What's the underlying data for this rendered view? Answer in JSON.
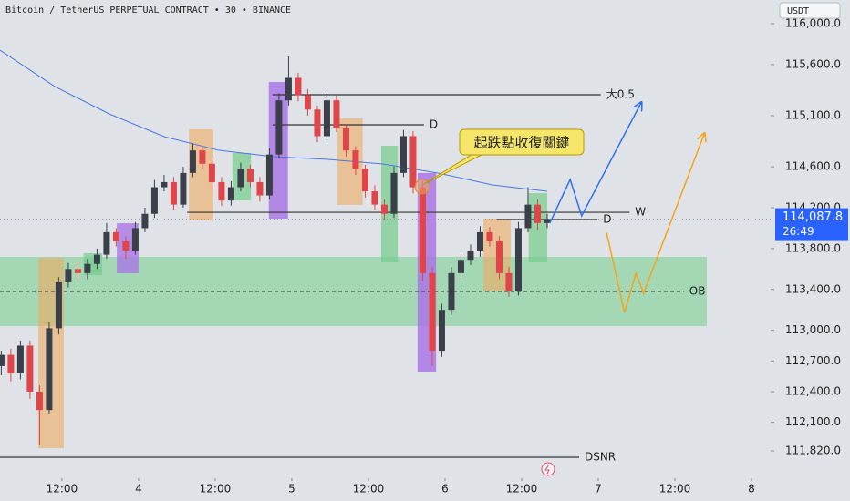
{
  "chart_data": {
    "type": "candlestick",
    "title": "Bitcoin / TetherUS PERPETUAL CONTRACT • 30 • BINANCE",
    "currency": "USDT",
    "annotation": "起跌點收復關鍵",
    "up_color": "#3b3f4a",
    "down_color": "#e0454a",
    "xlim": [
      2.3,
      123
    ],
    "ylim": [
      111553,
      116232
    ],
    "xticks": [
      {
        "value": 12,
        "label": "12:00"
      },
      {
        "value": 24,
        "label": "4"
      },
      {
        "value": 36,
        "label": "12:00"
      },
      {
        "value": 48,
        "label": "5"
      },
      {
        "value": 60,
        "label": "12:00"
      },
      {
        "value": 72,
        "label": "6"
      },
      {
        "value": 84,
        "label": "12:00"
      },
      {
        "value": 96,
        "label": "7"
      },
      {
        "value": 108,
        "label": "12:00"
      },
      {
        "value": 120,
        "label": "8"
      }
    ],
    "yticks": [
      {
        "value": 116000,
        "label": "116,000.0"
      },
      {
        "value": 115600,
        "label": "115,600.0"
      },
      {
        "value": 115100,
        "label": "115,100.0"
      },
      {
        "value": 114600,
        "label": "114,600.0"
      },
      {
        "value": 114200,
        "label": "114,200.0"
      },
      {
        "value": 113800,
        "label": "113,800.0"
      },
      {
        "value": 113400,
        "label": "113,400.0"
      },
      {
        "value": 113000,
        "label": "113,000.0"
      },
      {
        "value": 112700,
        "label": "112,700.0"
      },
      {
        "value": 112400,
        "label": "112,400.0"
      },
      {
        "value": 112100,
        "label": "112,100.0"
      },
      {
        "value": 111820,
        "label": "111,820.0"
      }
    ],
    "price_tag": {
      "value": 114087.8,
      "label": "114,087.8",
      "countdown": "26:49",
      "color": "#2962ff"
    },
    "candles": [
      [
        2.5,
        112650,
        112800,
        112560,
        112760
      ],
      [
        4,
        112760,
        112820,
        112500,
        112580
      ],
      [
        5.5,
        112580,
        112900,
        112520,
        112850
      ],
      [
        7,
        112850,
        112900,
        112330,
        112400
      ],
      [
        8.5,
        112400,
        112460,
        111880,
        112220
      ],
      [
        10,
        112220,
        113080,
        112180,
        113020
      ],
      [
        11.5,
        113020,
        113520,
        112960,
        113470
      ],
      [
        13,
        113470,
        113660,
        113420,
        113600
      ],
      [
        14.5,
        113600,
        113660,
        113500,
        113560
      ],
      [
        16,
        113560,
        113700,
        113500,
        113650
      ],
      [
        17.5,
        113650,
        113800,
        113600,
        113740
      ],
      [
        19,
        113740,
        114050,
        113700,
        113960
      ],
      [
        20.5,
        113960,
        114000,
        113820,
        113870
      ],
      [
        22,
        113870,
        113920,
        113700,
        113780
      ],
      [
        23.5,
        113780,
        114060,
        113740,
        114000
      ],
      [
        25,
        114000,
        114200,
        113960,
        114140
      ],
      [
        26.5,
        114140,
        114470,
        114100,
        114400
      ],
      [
        28,
        114400,
        114520,
        114360,
        114450
      ],
      [
        29.5,
        114450,
        114500,
        114180,
        114230
      ],
      [
        31,
        114230,
        114600,
        114200,
        114540
      ],
      [
        32.5,
        114540,
        114830,
        114500,
        114760
      ],
      [
        34,
        114760,
        114800,
        114580,
        114630
      ],
      [
        35.5,
        114630,
        114680,
        114400,
        114450
      ],
      [
        37,
        114450,
        114500,
        114220,
        114270
      ],
      [
        38.5,
        114270,
        114460,
        114220,
        114400
      ],
      [
        40,
        114400,
        114640,
        114360,
        114580
      ],
      [
        41.5,
        114580,
        114620,
        114400,
        114450
      ],
      [
        43,
        114450,
        114500,
        114260,
        114320
      ],
      [
        44.5,
        114320,
        114780,
        114280,
        114720
      ],
      [
        46,
        114720,
        115320,
        114680,
        115250
      ],
      [
        47.5,
        115250,
        115680,
        115200,
        115470
      ],
      [
        49,
        115470,
        115520,
        115240,
        115300
      ],
      [
        50.5,
        115300,
        115360,
        115100,
        115160
      ],
      [
        52,
        115160,
        115200,
        114840,
        114900
      ],
      [
        53.5,
        114900,
        115330,
        114860,
        115250
      ],
      [
        55,
        115250,
        115300,
        114940,
        114980
      ],
      [
        56.5,
        114980,
        115020,
        114700,
        114760
      ],
      [
        58,
        114760,
        114800,
        114520,
        114580
      ],
      [
        59.5,
        114580,
        114620,
        114300,
        114360
      ],
      [
        61,
        114360,
        114420,
        114180,
        114230
      ],
      [
        62.5,
        114230,
        114280,
        114080,
        114140
      ],
      [
        64,
        114140,
        114600,
        114100,
        114540
      ],
      [
        65.5,
        114540,
        114960,
        114500,
        114900
      ],
      [
        67,
        114900,
        114950,
        114340,
        114400
      ],
      [
        68.5,
        114400,
        114460,
        113480,
        113560
      ],
      [
        70,
        113560,
        113620,
        112650,
        112800
      ],
      [
        71.5,
        112800,
        113260,
        112740,
        113200
      ],
      [
        73,
        113200,
        113620,
        113150,
        113560
      ],
      [
        74.5,
        113560,
        113740,
        113500,
        113690
      ],
      [
        76,
        113690,
        113840,
        113640,
        113780
      ],
      [
        77.5,
        113780,
        114020,
        113720,
        113960
      ],
      [
        79,
        113960,
        114010,
        113820,
        113870
      ],
      [
        80.5,
        113870,
        113920,
        113500,
        113560
      ],
      [
        82,
        113560,
        113620,
        113330,
        113380
      ],
      [
        83.5,
        113380,
        114060,
        113340,
        114000
      ],
      [
        85,
        114000,
        114400,
        113960,
        114230
      ],
      [
        86.5,
        114230,
        114280,
        113980,
        114050
      ],
      [
        88,
        114050,
        114140,
        114000,
        114087.8
      ]
    ],
    "ma": {
      "color": "#4a78e0",
      "x": [
        2.3,
        10.9,
        19.4,
        28,
        36.6,
        45.1,
        53.7,
        62.3,
        70.9,
        79.4,
        88
      ],
      "values": [
        115742,
        115385,
        115118,
        114895,
        114761,
        114699,
        114672,
        114628,
        114539,
        114423,
        114360
      ]
    },
    "zones": [
      {
        "color": "rgba(114,205,138,0.55)",
        "x": [
          2.3,
          113
        ],
        "y": [
          113719,
          113041
        ]
      },
      {
        "color": "rgba(240,172,96,0.6)",
        "x": [
          8.3,
          12.3
        ],
        "y": [
          113710,
          111847
        ]
      },
      {
        "color": "rgba(114,205,138,0.7)",
        "x": [
          15.4,
          18.3
        ],
        "y": [
          113754,
          113540
        ]
      },
      {
        "color": "rgba(168,112,230,0.75)",
        "x": [
          20.6,
          24
        ],
        "y": [
          114048,
          113558
        ]
      },
      {
        "color": "rgba(240,172,96,0.6)",
        "x": [
          31.9,
          35.7
        ],
        "y": [
          114966,
          114075
        ]
      },
      {
        "color": "rgba(114,205,138,0.7)",
        "x": [
          38.7,
          41.6
        ],
        "y": [
          114735,
          114271
        ]
      },
      {
        "color": "rgba(168,112,230,0.8)",
        "x": [
          44.4,
          47.4
        ],
        "y": [
          115430,
          114093
        ]
      },
      {
        "color": "rgba(240,172,96,0.6)",
        "x": [
          55.1,
          59.1
        ],
        "y": [
          115073,
          114227
        ]
      },
      {
        "color": "rgba(114,205,138,0.7)",
        "x": [
          62,
          64.6
        ],
        "y": [
          114806,
          113665
        ]
      },
      {
        "color": "rgba(168,112,230,0.8)",
        "x": [
          67.7,
          70.6
        ],
        "y": [
          114539,
          112596
        ]
      },
      {
        "color": "rgba(240,172,96,0.6)",
        "x": [
          78,
          82.3
        ],
        "y": [
          114093,
          113380
        ]
      },
      {
        "color": "rgba(114,205,138,0.7)",
        "x": [
          85.1,
          88
        ],
        "y": [
          114342,
          113665
        ]
      }
    ],
    "levels": [
      {
        "label": "大0.5",
        "x": [
          45,
          96.4
        ],
        "value": 115305,
        "dashed": false
      },
      {
        "label": "D",
        "x": [
          45,
          68.7
        ],
        "value": 115011,
        "dashed": false
      },
      {
        "label": "W",
        "x": [
          31.6,
          100.9
        ],
        "value": 114155,
        "dashed": false
      },
      {
        "label": "D",
        "x": [
          80.1,
          95.9
        ],
        "value": 114084,
        "dashed": false
      },
      {
        "label": "OB",
        "x": [
          2.3,
          109.4
        ],
        "value": 113380,
        "dashed": true
      },
      {
        "label": "DSNR",
        "x": [
          2.3,
          93
        ],
        "value": 111758,
        "dashed": false
      }
    ],
    "projections": [
      {
        "color": "#2f6ff0",
        "x": [
          88.4,
          91.6,
          93.4,
          102.7
        ],
        "values": [
          114048,
          114476,
          114120,
          115225
        ]
      },
      {
        "color": "#f5a31a",
        "x": [
          97.3,
          100.1,
          101.9,
          103.1,
          112.6
        ],
        "values": [
          113959,
          113175,
          113558,
          113362,
          114922
        ]
      }
    ]
  }
}
